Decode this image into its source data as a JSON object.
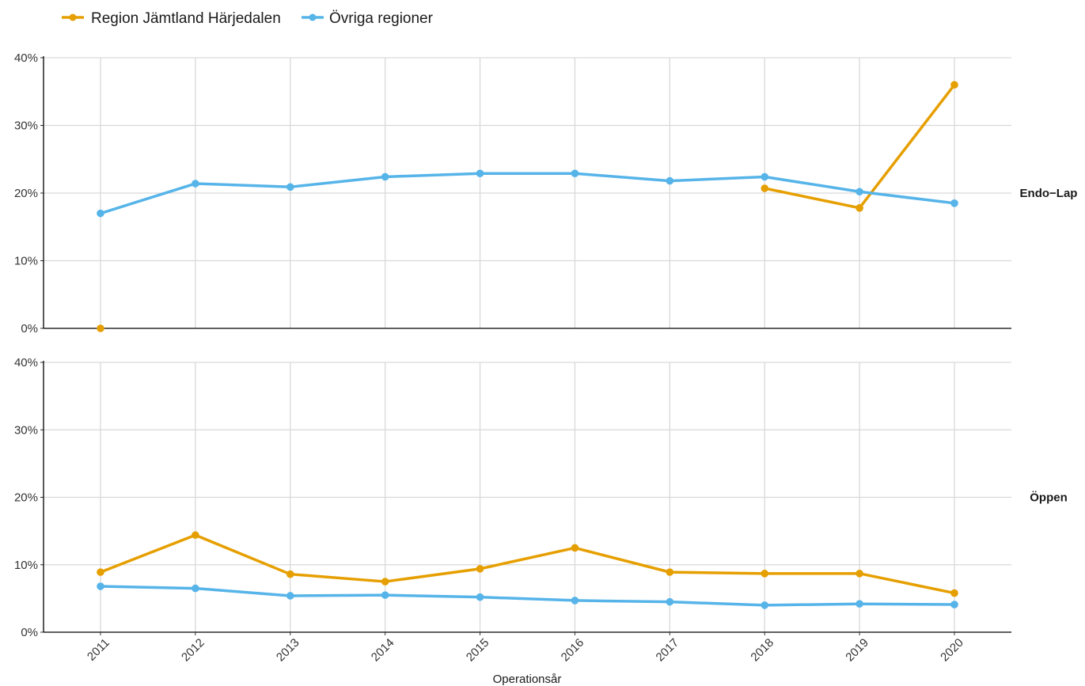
{
  "chart_data": {
    "type": "line",
    "xlabel": "Operationsår",
    "ylabel": "",
    "categories": [
      "2011",
      "2012",
      "2013",
      "2014",
      "2015",
      "2016",
      "2017",
      "2018",
      "2019",
      "2020"
    ],
    "ylim": [
      0,
      40
    ],
    "y_ticks": [
      "0%",
      "10%",
      "20%",
      "30%",
      "40%"
    ],
    "grid": true,
    "legend_position": "top-left",
    "legend": [
      {
        "name": "Region Jämtland Härjedalen",
        "color": "#E69F00"
      },
      {
        "name": "Övriga regioner",
        "color": "#56B4E9"
      }
    ],
    "panels": [
      {
        "label": "Endo−Lap",
        "series": [
          {
            "name": "Region Jämtland Härjedalen",
            "color": "#E69F00",
            "values": [
              0,
              null,
              null,
              null,
              null,
              null,
              null,
              20.7,
              17.8,
              36.0
            ]
          },
          {
            "name": "Övriga regioner",
            "color": "#56B4E9",
            "values": [
              17.0,
              21.4,
              20.9,
              22.4,
              22.9,
              22.9,
              21.8,
              22.4,
              20.2,
              18.5
            ]
          }
        ]
      },
      {
        "label": "Öppen",
        "series": [
          {
            "name": "Region Jämtland Härjedalen",
            "color": "#E69F00",
            "values": [
              8.9,
              14.4,
              8.6,
              7.5,
              9.4,
              12.5,
              8.9,
              8.7,
              8.7,
              5.8
            ]
          },
          {
            "name": "Övriga regioner",
            "color": "#56B4E9",
            "values": [
              6.8,
              6.5,
              5.4,
              5.5,
              5.2,
              4.7,
              4.5,
              4.0,
              4.2,
              4.1
            ]
          }
        ]
      }
    ]
  }
}
